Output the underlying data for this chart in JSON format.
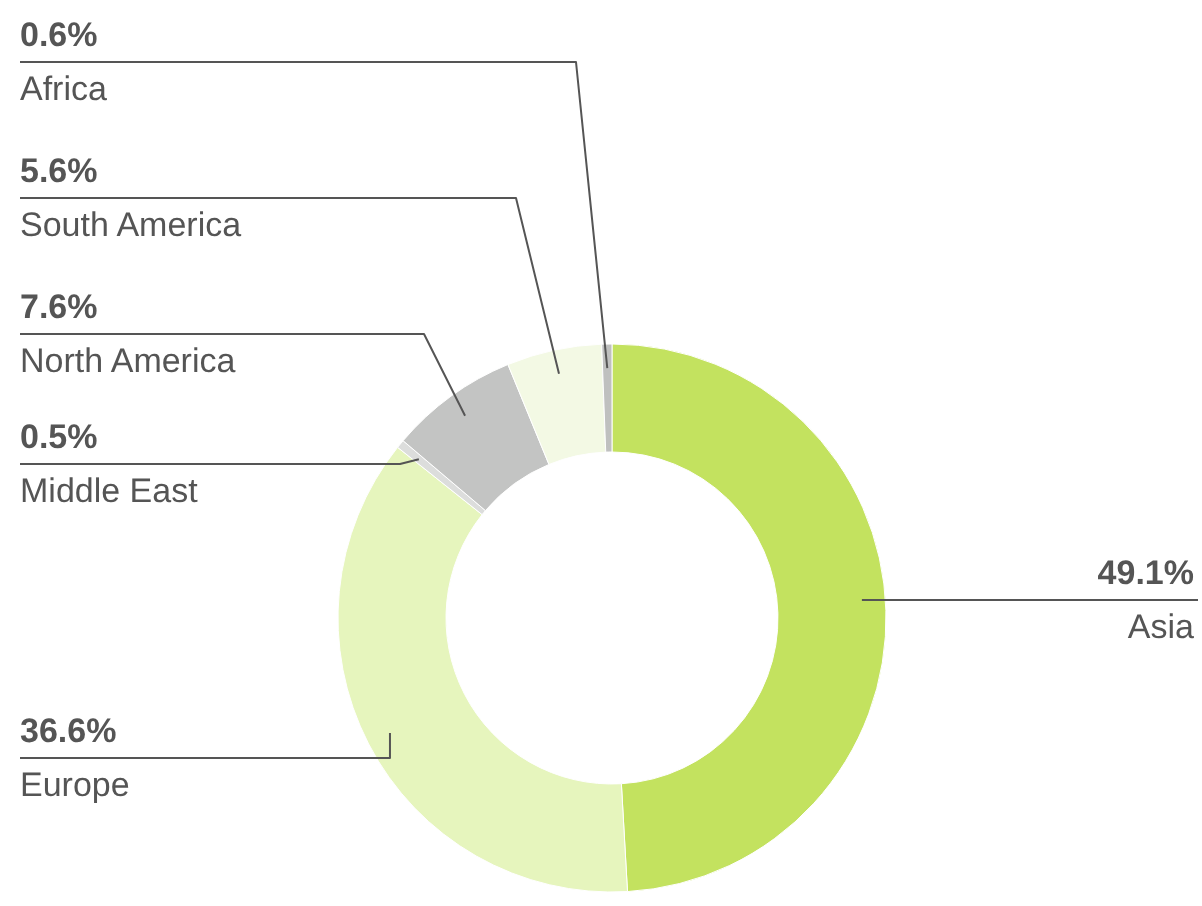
{
  "chart_data": {
    "type": "donut",
    "categories": [
      "Asia",
      "Europe",
      "Middle East",
      "North America",
      "South America",
      "Africa"
    ],
    "values": [
      49.1,
      36.6,
      0.5,
      7.6,
      5.6,
      0.6
    ],
    "value_labels": [
      "49.1%",
      "36.6%",
      "0.5%",
      "7.6%",
      "5.6%",
      "0.6%"
    ],
    "colors": [
      "#c3e25f",
      "#e6f5bd",
      "#dcdddc",
      "#c3c4c3",
      "#f3f9e4",
      "#bfc0bf"
    ]
  }
}
